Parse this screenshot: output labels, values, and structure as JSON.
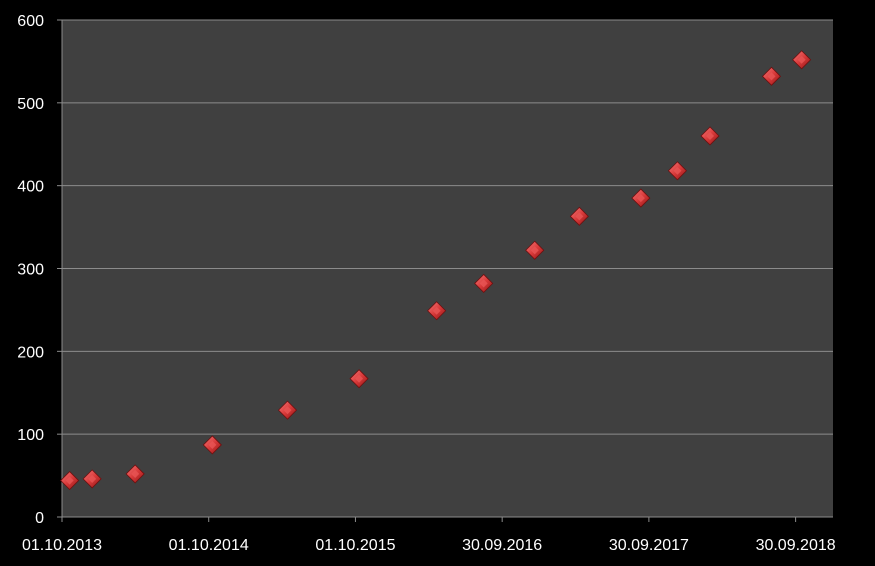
{
  "chart_data": {
    "type": "scatter",
    "title": "",
    "xlabel": "",
    "ylabel": "",
    "x_axis_type": "date",
    "xlim": [
      "2013-10-01",
      "2019-01-01"
    ],
    "ylim": [
      0,
      600
    ],
    "y_ticks": [
      0,
      100,
      200,
      300,
      400,
      500,
      600
    ],
    "x_tick_labels": [
      "01.10.2013",
      "01.10.2014",
      "01.10.2015",
      "30.09.2016",
      "30.09.2017",
      "30.09.2018"
    ],
    "x_tick_dates": [
      "2013-10-01",
      "2014-10-01",
      "2015-10-01",
      "2016-09-30",
      "2017-09-30",
      "2018-09-30"
    ],
    "grid": "horizontal",
    "legend": "none",
    "colors": {
      "background": "#000000",
      "plot_area": "#404040",
      "gridline": "#8c8c8c",
      "marker": "#d93a3a",
      "text": "#ffffff"
    },
    "points": [
      {
        "x": "2013-10-20",
        "y": 44
      },
      {
        "x": "2013-12-15",
        "y": 46
      },
      {
        "x": "2014-04-01",
        "y": 52
      },
      {
        "x": "2014-10-10",
        "y": 87
      },
      {
        "x": "2015-04-15",
        "y": 129
      },
      {
        "x": "2015-10-10",
        "y": 167
      },
      {
        "x": "2016-04-20",
        "y": 249
      },
      {
        "x": "2016-08-15",
        "y": 282
      },
      {
        "x": "2016-12-20",
        "y": 322
      },
      {
        "x": "2017-04-10",
        "y": 363
      },
      {
        "x": "2017-09-10",
        "y": 385
      },
      {
        "x": "2017-12-10",
        "y": 418
      },
      {
        "x": "2018-03-01",
        "y": 460
      },
      {
        "x": "2018-08-01",
        "y": 532
      },
      {
        "x": "2018-10-15",
        "y": 552
      }
    ]
  }
}
